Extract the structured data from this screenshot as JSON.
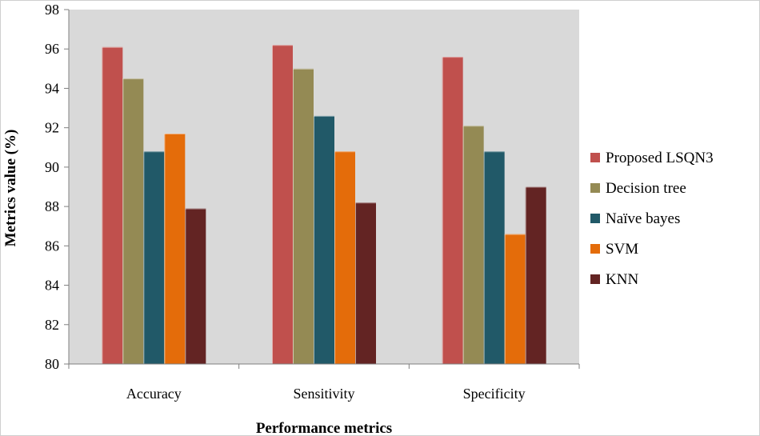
{
  "chart_data": {
    "type": "bar",
    "title": "",
    "xlabel": "Performance metrics",
    "ylabel": "Metrics value (%)",
    "ylim": [
      80,
      98
    ],
    "yticks": [
      "80",
      "82",
      "84",
      "86",
      "88",
      "90",
      "92",
      "94",
      "96",
      "98"
    ],
    "grid": false,
    "legend_position": "right",
    "categories": [
      "Accuracy",
      "Sensitivity",
      "Specificity"
    ],
    "series": [
      {
        "name": "Proposed LSQN3",
        "color": "#c0504d",
        "values": [
          96.1,
          96.2,
          95.6
        ]
      },
      {
        "name": "Decision tree",
        "color": "#948a54",
        "values": [
          94.5,
          95.0,
          92.1
        ]
      },
      {
        "name": "Naïve bayes",
        "color": "#215968",
        "values": [
          90.8,
          92.6,
          90.8
        ]
      },
      {
        "name": "SVM",
        "color": "#e46c0a",
        "values": [
          91.7,
          90.8,
          86.6
        ]
      },
      {
        "name": "KNN",
        "color": "#632423",
        "values": [
          87.9,
          88.2,
          89.0
        ]
      }
    ]
  },
  "colors": {
    "plot_background": "#d9d9d9"
  }
}
